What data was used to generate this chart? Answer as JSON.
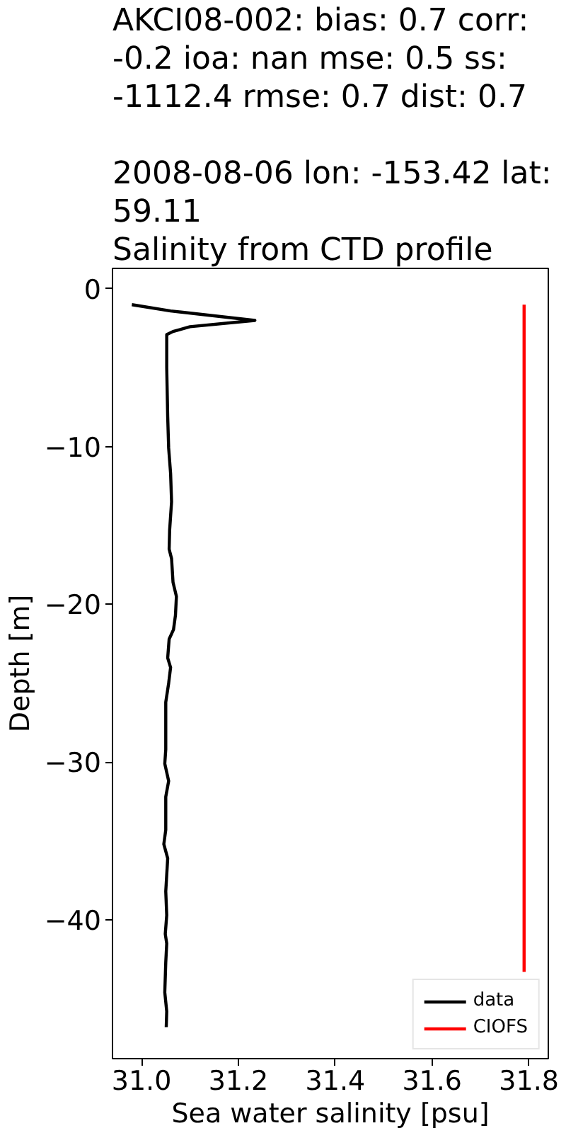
{
  "chart_data": {
    "type": "line",
    "title": "AKCI08-002: bias: 0.7  corr:\n-0.2  ioa: nan  mse: 0.5  ss:\n-1112.4  rmse: 0.7  dist: 0.7\n\n2008-08-06 lon: -153.42 lat:\n59.11\nSalinity from CTD profile",
    "xlabel": "Sea water salinity [psu]",
    "ylabel": "Depth [m]",
    "xlim": [
      30.94,
      31.84
    ],
    "ylim": [
      -48.8,
      1.3
    ],
    "xticks": [
      {
        "value": 31.0,
        "label": "31.0"
      },
      {
        "value": 31.2,
        "label": "31.2"
      },
      {
        "value": 31.4,
        "label": "31.4"
      },
      {
        "value": 31.6,
        "label": "31.6"
      },
      {
        "value": 31.8,
        "label": "31.8"
      }
    ],
    "yticks": [
      0,
      {
        "value": -10,
        "label": "−10"
      },
      {
        "value": -20,
        "label": "−20"
      },
      {
        "value": -30,
        "label": "−30"
      },
      {
        "value": -40,
        "label": "−40"
      }
    ],
    "legend": "bottom right",
    "series": [
      {
        "name": "data",
        "color": "#000000",
        "x": [
          30.98,
          31.06,
          31.234,
          31.1,
          31.065,
          31.052,
          31.052,
          31.052,
          31.054,
          31.056,
          31.06,
          31.062,
          31.058,
          31.057,
          31.062,
          31.065,
          31.072,
          31.07,
          31.066,
          31.057,
          31.054,
          31.06,
          31.056,
          31.05,
          31.05,
          31.048,
          31.056,
          31.05,
          31.05,
          31.046,
          31.054,
          31.05,
          31.052,
          31.049,
          31.052,
          31.05,
          31.048,
          31.052,
          31.051
        ],
        "values": [
          -1.0,
          -1.4,
          -2.0,
          -2.4,
          -2.7,
          -2.9,
          -3.2,
          -5.0,
          -8.1,
          -10.1,
          -11.7,
          -13.5,
          -15.3,
          -16.5,
          -17.1,
          -18.6,
          -19.5,
          -20.7,
          -21.6,
          -22.2,
          -23.4,
          -24.0,
          -25.0,
          -26.2,
          -29.2,
          -30.1,
          -31.2,
          -32.2,
          -34.3,
          -35.2,
          -36.1,
          -38.2,
          -39.7,
          -40.9,
          -41.5,
          -42.7,
          -44.6,
          -45.8,
          -46.8
        ]
      },
      {
        "name": "CIOFS",
        "color": "#ff0000",
        "x": [
          31.79,
          31.79
        ],
        "values": [
          -1.0,
          -43.3
        ]
      }
    ]
  }
}
